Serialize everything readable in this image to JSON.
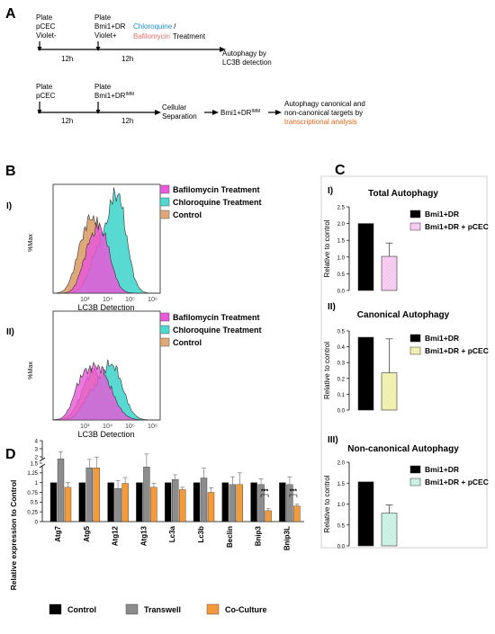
{
  "panels": {
    "a": "A",
    "b": "B",
    "c": "C",
    "d": "D"
  },
  "schema1": {
    "step1": [
      "Plate",
      "pCEC",
      "Violet-"
    ],
    "step2": [
      "Plate",
      "Bmi1+DR",
      "Violet+"
    ],
    "treat_chloro": "Chloroquine",
    "treat_slash": "/",
    "treat_bafilo": "Bafilomycin",
    "treat_suffix": "Treatment",
    "time1": "12h",
    "time2": "12h",
    "result": [
      "Autophagy by",
      "LC3B detection"
    ]
  },
  "schema2": {
    "step1": [
      "Plate",
      "pCEC"
    ],
    "step2": [
      "Plate",
      "Bmi1+DR"
    ],
    "step2_sup": "IMM",
    "time1": "12h",
    "time2": "12h",
    "step3": [
      "Cellular",
      "Separation"
    ],
    "step4": "Bmi1+DR",
    "step4_sup": "IMM",
    "result": [
      "Autophagy canonical and",
      "non-canonical targets by"
    ],
    "result_highlight": "transcriptional analysis"
  },
  "colors": {
    "chloro": "#1a8fd0",
    "bafilo": "#f26b6b",
    "orange_text": "#e0671c",
    "hist_bafilo": "#e858d8",
    "hist_chloro": "#4fd8d0",
    "hist_control": "#e0a878",
    "bar_black": "#000000",
    "bar_pink": "#f5c6ee",
    "bar_yellow": "#eef0a8",
    "bar_mint": "#c6efe2",
    "d_control": "#000000",
    "d_transwell": "#8c8c8c",
    "d_coculture": "#f39a3a"
  },
  "histograms": {
    "sub_i": "I)",
    "sub_ii": "II)",
    "ylabel": "%Max",
    "xlabel": "LC3B Detection",
    "ticks": [
      "10³",
      "10⁴",
      "10⁵",
      "10⁶"
    ],
    "legend": [
      "Bafilomycin Treatment",
      "Chloroquine Treatment",
      "Control"
    ]
  },
  "chart_data": [
    {
      "type": "bar",
      "panel": "C I)",
      "title": "Total Autophagy",
      "ylabel": "Relative to control",
      "ylim": [
        0,
        2.5
      ],
      "yticks": [
        "0.0",
        "0.5",
        "1.0",
        "1.5",
        "2.0",
        "2.5"
      ],
      "categories": [
        "Bmi1+DR",
        "Bmi1+DR + pCEC"
      ],
      "values": [
        2.0,
        1.02
      ],
      "errors": [
        0,
        0.4
      ],
      "legend": [
        "Bmi1+DR",
        "Bmi1+DR + pCEC"
      ]
    },
    {
      "type": "bar",
      "panel": "C II)",
      "title": "Canonical Autophagy",
      "ylabel": "Relative to control",
      "ylim": [
        0,
        0.5
      ],
      "yticks": [
        "0.0",
        "0.1",
        "0.2",
        "0.3",
        "0.4",
        "0.5"
      ],
      "categories": [
        "Bmi1+DR",
        "Bmi1+DR + pCEC"
      ],
      "values": [
        0.46,
        0.235
      ],
      "errors": [
        0,
        0.215
      ],
      "legend": [
        "Bmi1+DR",
        "Bmi1+DR + pCEC"
      ]
    },
    {
      "type": "bar",
      "panel": "C III)",
      "title": "Non-canonical Autophagy",
      "ylabel": "Relative to control",
      "ylim": [
        0,
        2.0
      ],
      "yticks": [
        "0.0",
        "0.5",
        "1.0",
        "1.5",
        "2.0"
      ],
      "categories": [
        "Bmi1+DR",
        "Bmi1+DR + pCEC"
      ],
      "values": [
        1.53,
        0.78
      ],
      "errors": [
        0,
        0.2
      ],
      "legend": [
        "Bmi1+DR",
        "Bmi1+DR + pCEC"
      ]
    },
    {
      "type": "bar",
      "panel": "D",
      "ylabel": "Relative expression to Control",
      "yticks": [
        "0",
        "0.25",
        "0.5",
        "0.75",
        "1",
        "1.25",
        "1.5",
        "2",
        "3",
        "4"
      ],
      "categories": [
        "Atg7",
        "Atg5",
        "Atg12",
        "Atg13",
        "Lc3a",
        "Lc3b",
        "Beclin",
        "Bnip3",
        "Bnip3L"
      ],
      "series": [
        {
          "name": "Control",
          "values": [
            1,
            1,
            1,
            1,
            1,
            1,
            1,
            1,
            1
          ],
          "errors": [
            0,
            0,
            0,
            0,
            0,
            0,
            0,
            0,
            0
          ]
        },
        {
          "name": "Transwell",
          "values": [
            1.75,
            1.38,
            0.85,
            1.4,
            1.08,
            1.12,
            0.95,
            0.95,
            0.95
          ],
          "errors": [
            0.9,
            0.3,
            0.2,
            0.95,
            0.12,
            0.25,
            0.2,
            0.15,
            0.2
          ]
        },
        {
          "name": "Co-Culture",
          "values": [
            0.88,
            1.38,
            0.98,
            0.88,
            0.82,
            0.75,
            0.95,
            0.28,
            0.4
          ],
          "errors": [
            0.12,
            0.6,
            0.15,
            0.1,
            0.06,
            0.12,
            0.3,
            0.05,
            0.05
          ]
        }
      ],
      "significance": [
        {
          "category": "Bnip3",
          "label": "***"
        },
        {
          "category": "Bnip3L",
          "label": "***"
        }
      ],
      "legend": [
        "Control",
        "Transwell",
        "Co-Culture"
      ]
    }
  ]
}
